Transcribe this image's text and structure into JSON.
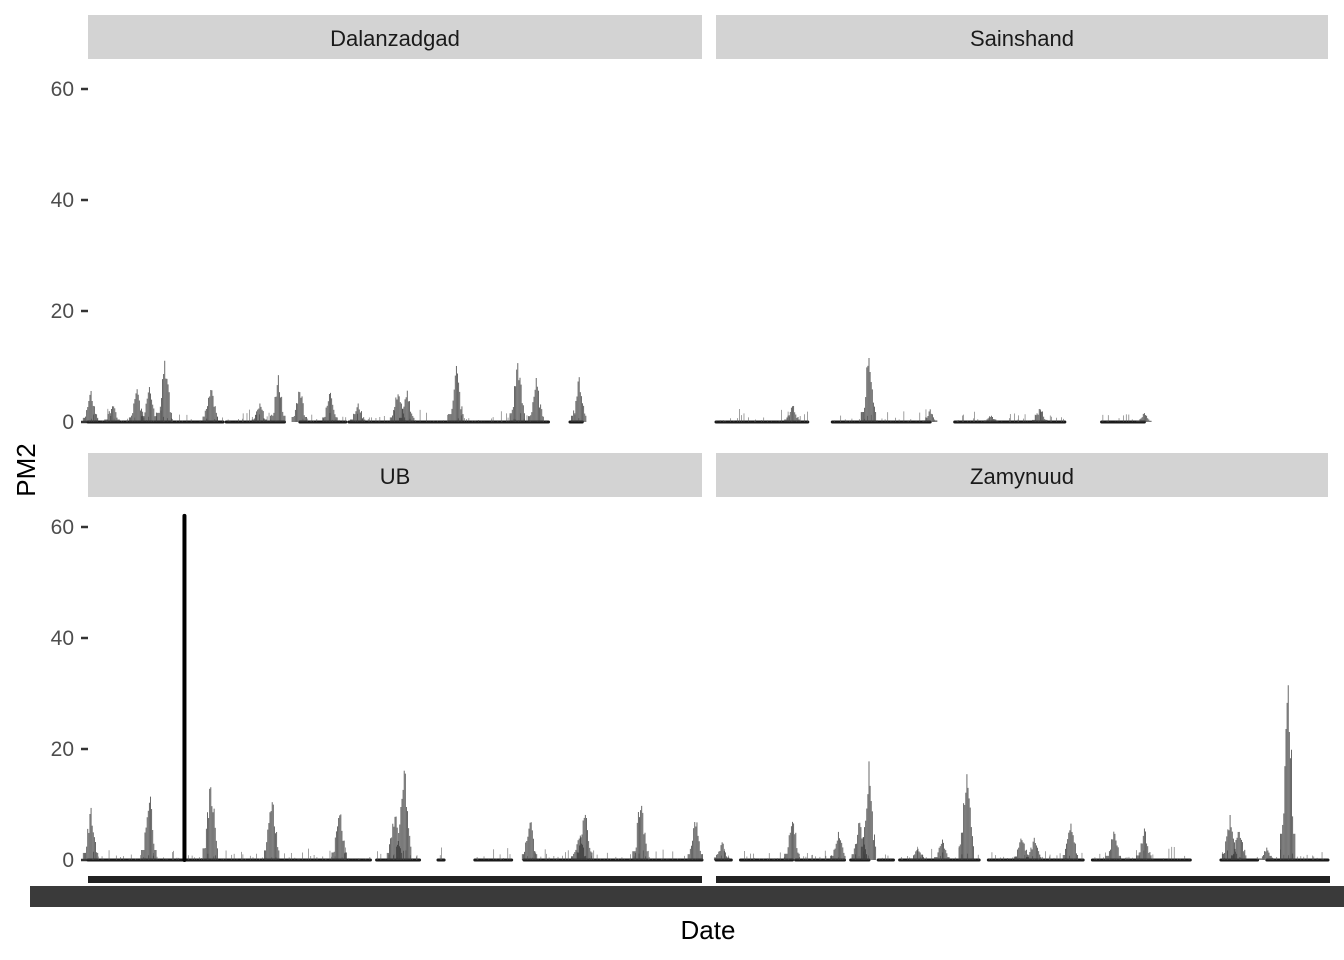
{
  "chart_data": {
    "type": "line",
    "xlabel": "Date",
    "ylabel": "PM2",
    "ylim": [
      -2.5,
      66
    ],
    "yticks": [
      0,
      20,
      40,
      60
    ],
    "grid": false,
    "legend": "none",
    "colors": {
      "series": "#1a1a1a",
      "strip": "#d3d3d3",
      "axis_ticks": "#333333",
      "overlap_band": "#333333"
    },
    "x_tick_labels_note": "Dense overlapping date labels are illegible",
    "facets": [
      {
        "name": "Dalanzadgad",
        "peaks": [
          {
            "x": 0.005,
            "y": 5.0
          },
          {
            "x": 0.04,
            "y": 3.0
          },
          {
            "x": 0.08,
            "y": 5.5
          },
          {
            "x": 0.1,
            "y": 7.0
          },
          {
            "x": 0.125,
            "y": 11.0
          },
          {
            "x": 0.2,
            "y": 6.5
          },
          {
            "x": 0.28,
            "y": 3.0
          },
          {
            "x": 0.31,
            "y": 7.5
          },
          {
            "x": 0.345,
            "y": 6.0
          },
          {
            "x": 0.395,
            "y": 5.5
          },
          {
            "x": 0.44,
            "y": 3.0
          },
          {
            "x": 0.505,
            "y": 5.5
          },
          {
            "x": 0.52,
            "y": 5.0
          },
          {
            "x": 0.6,
            "y": 9.5
          },
          {
            "x": 0.7,
            "y": 10.5
          },
          {
            "x": 0.73,
            "y": 7.0
          },
          {
            "x": 0.8,
            "y": 7.5
          }
        ],
        "segments": [
          [
            0.0,
            0.22
          ],
          [
            0.225,
            0.32
          ],
          [
            0.345,
            0.42
          ],
          [
            0.425,
            0.75
          ],
          [
            0.785,
            0.805
          ]
        ]
      },
      {
        "name": "Sainshand",
        "peaks": [
          {
            "x": 0.125,
            "y": 3.0
          },
          {
            "x": 0.25,
            "y": 12.0
          },
          {
            "x": 0.35,
            "y": 2.0
          },
          {
            "x": 0.45,
            "y": 1.0
          },
          {
            "x": 0.53,
            "y": 2.5
          },
          {
            "x": 0.7,
            "y": 1.5
          }
        ],
        "segments": [
          [
            0.0,
            0.15
          ],
          [
            0.19,
            0.35
          ],
          [
            0.39,
            0.57
          ],
          [
            0.63,
            0.7
          ]
        ]
      },
      {
        "name": "UB",
        "peaks": [
          {
            "x": 0.005,
            "y": 8.5
          },
          {
            "x": 0.1,
            "y": 12.0
          },
          {
            "x": 0.158,
            "y": 62.0
          },
          {
            "x": 0.2,
            "y": 14.0
          },
          {
            "x": 0.3,
            "y": 11.5
          },
          {
            "x": 0.41,
            "y": 9.0
          },
          {
            "x": 0.5,
            "y": 8.5
          },
          {
            "x": 0.515,
            "y": 16.0
          },
          {
            "x": 0.72,
            "y": 7.0
          },
          {
            "x": 0.8,
            "y": 4.5
          },
          {
            "x": 0.81,
            "y": 9.0
          },
          {
            "x": 0.9,
            "y": 10.5
          },
          {
            "x": 0.99,
            "y": 7.0
          }
        ],
        "segments": [
          [
            0.0,
            0.12
          ],
          [
            0.12,
            0.46
          ],
          [
            0.47,
            0.54
          ],
          [
            0.57,
            0.58
          ],
          [
            0.63,
            0.69
          ],
          [
            0.71,
            1.0
          ]
        ]
      },
      {
        "name": "Zamynuud",
        "peaks": [
          {
            "x": 0.01,
            "y": 3.0
          },
          {
            "x": 0.125,
            "y": 7.5
          },
          {
            "x": 0.2,
            "y": 5.0
          },
          {
            "x": 0.235,
            "y": 7.0
          },
          {
            "x": 0.25,
            "y": 16.0
          },
          {
            "x": 0.33,
            "y": 2.0
          },
          {
            "x": 0.37,
            "y": 3.5
          },
          {
            "x": 0.41,
            "y": 16.5
          },
          {
            "x": 0.5,
            "y": 4.0
          },
          {
            "x": 0.52,
            "y": 3.5
          },
          {
            "x": 0.58,
            "y": 6.0
          },
          {
            "x": 0.65,
            "y": 5.0
          },
          {
            "x": 0.7,
            "y": 5.5
          },
          {
            "x": 0.84,
            "y": 7.5
          },
          {
            "x": 0.855,
            "y": 5.5
          },
          {
            "x": 0.9,
            "y": 2.0
          },
          {
            "x": 0.935,
            "y": 31.5
          }
        ],
        "segments": [
          [
            0.0,
            0.025
          ],
          [
            0.04,
            0.125
          ],
          [
            0.13,
            0.21
          ],
          [
            0.22,
            0.25
          ],
          [
            0.265,
            0.29
          ],
          [
            0.3,
            0.43
          ],
          [
            0.445,
            0.6
          ],
          [
            0.615,
            0.775
          ],
          [
            0.825,
            0.885
          ],
          [
            0.9,
            0.975
          ],
          [
            0.975,
            1.0
          ]
        ]
      }
    ]
  }
}
